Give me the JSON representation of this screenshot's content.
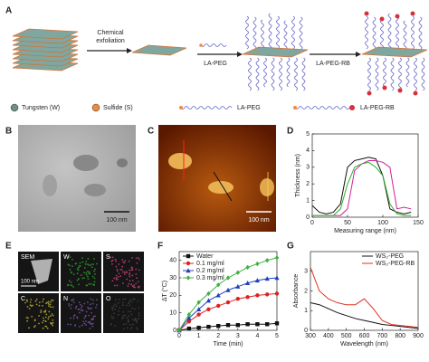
{
  "panel_labels": [
    "A",
    "B",
    "C",
    "D",
    "E",
    "F",
    "G"
  ],
  "schematic": {
    "step1": [
      "Chemical",
      "exfoliation"
    ],
    "reagent1": "LA-PEG",
    "reagent2": "LA-PEG-RB",
    "legend": [
      "Tungsten (W)",
      "Sulfide (S)",
      "LA-PEG",
      "LA-PEG-RB"
    ]
  },
  "images": {
    "tem_scale": "100 nm",
    "afm_scale": "100 nm",
    "eds_scale": "100 nm",
    "eds_labels": [
      "SEM",
      "W",
      "S",
      "C",
      "N",
      "O"
    ]
  },
  "chart_data": [
    {
      "type": "line",
      "x_label": "Measuring range (nm)",
      "y_label": "Thickness (nm)",
      "x": [
        0,
        10,
        20,
        30,
        40,
        50,
        60,
        70,
        80,
        90,
        100,
        110,
        120,
        130,
        140
      ],
      "series": [
        {
          "color": "#111111",
          "values": [
            0.7,
            0.3,
            0.2,
            0.3,
            0.8,
            3.0,
            3.4,
            3.5,
            3.6,
            3.5,
            2.5,
            0.5,
            0.3,
            0.2,
            0.3
          ]
        },
        {
          "color": "#d0209a",
          "values": [
            0.1,
            0.1,
            0.1,
            0.1,
            0.1,
            0.5,
            2.8,
            3.2,
            3.4,
            3.4,
            3.3,
            3.0,
            0.5,
            0.6,
            0.5
          ]
        },
        {
          "color": "#30b030",
          "values": [
            0.1,
            0.1,
            0.1,
            0.1,
            0.5,
            2.0,
            3.0,
            3.2,
            3.3,
            3.0,
            2.5,
            0.8,
            0.2,
            0.1,
            0.1
          ]
        }
      ],
      "xlim": [
        0,
        150
      ],
      "xticks": [
        0,
        50,
        100,
        150
      ],
      "ylim": [
        0,
        5
      ],
      "yticks": [
        0,
        1,
        2,
        3,
        4,
        5
      ]
    },
    {
      "type": "line",
      "x_label": "Time (min)",
      "y_label": "ΔT (°C)",
      "legend": "upper left",
      "x": [
        0,
        0.5,
        1,
        1.5,
        2,
        2.5,
        3,
        3.5,
        4,
        4.5,
        5
      ],
      "series": [
        {
          "name": "Water",
          "color": "#111111",
          "marker": "square",
          "values": [
            0,
            1,
            1.5,
            2,
            2.5,
            3,
            3,
            3.5,
            3.5,
            3.5,
            4
          ]
        },
        {
          "name": "0.1 mg/ml",
          "color": "#e02020",
          "marker": "circle",
          "values": [
            0,
            5,
            9,
            12,
            14,
            16,
            18,
            19,
            20,
            20.5,
            21
          ]
        },
        {
          "name": "0.2 mg/ml",
          "color": "#2040c0",
          "marker": "triangle",
          "values": [
            0,
            7,
            12,
            17,
            20,
            23,
            25,
            27,
            28.5,
            29.5,
            30
          ]
        },
        {
          "name": "0.3 mg/ml",
          "color": "#40b040",
          "marker": "diamond",
          "values": [
            0,
            9,
            16,
            21,
            26,
            30,
            33,
            36,
            38,
            40,
            41.5
          ]
        }
      ],
      "xlim": [
        0,
        5
      ],
      "xticks": [
        0,
        1,
        2,
        3,
        4,
        5
      ],
      "ylim": [
        0,
        45
      ],
      "yticks": [
        0,
        10,
        20,
        30,
        40
      ]
    },
    {
      "type": "line",
      "x_label": "Wavelength (nm)",
      "y_label": "Absorbance",
      "legend": "upper right",
      "x": [
        300,
        350,
        400,
        450,
        500,
        550,
        600,
        650,
        700,
        750,
        800,
        850,
        900
      ],
      "series": [
        {
          "name": "WS₂-PEG",
          "color": "#111111",
          "values": [
            1.4,
            1.3,
            1.1,
            0.9,
            0.75,
            0.6,
            0.5,
            0.4,
            0.3,
            0.25,
            0.2,
            0.15,
            0.1
          ]
        },
        {
          "name": "WS₂-PEG-RB",
          "color": "#e03020",
          "values": [
            3.2,
            2.0,
            1.6,
            1.4,
            1.3,
            1.3,
            1.6,
            1.1,
            0.5,
            0.3,
            0.25,
            0.2,
            0.15
          ]
        }
      ],
      "xlim": [
        300,
        900
      ],
      "xticks": [
        300,
        400,
        500,
        600,
        700,
        800,
        900
      ],
      "ylim": [
        0,
        4
      ],
      "yticks": [
        0,
        1,
        2,
        3
      ]
    }
  ]
}
